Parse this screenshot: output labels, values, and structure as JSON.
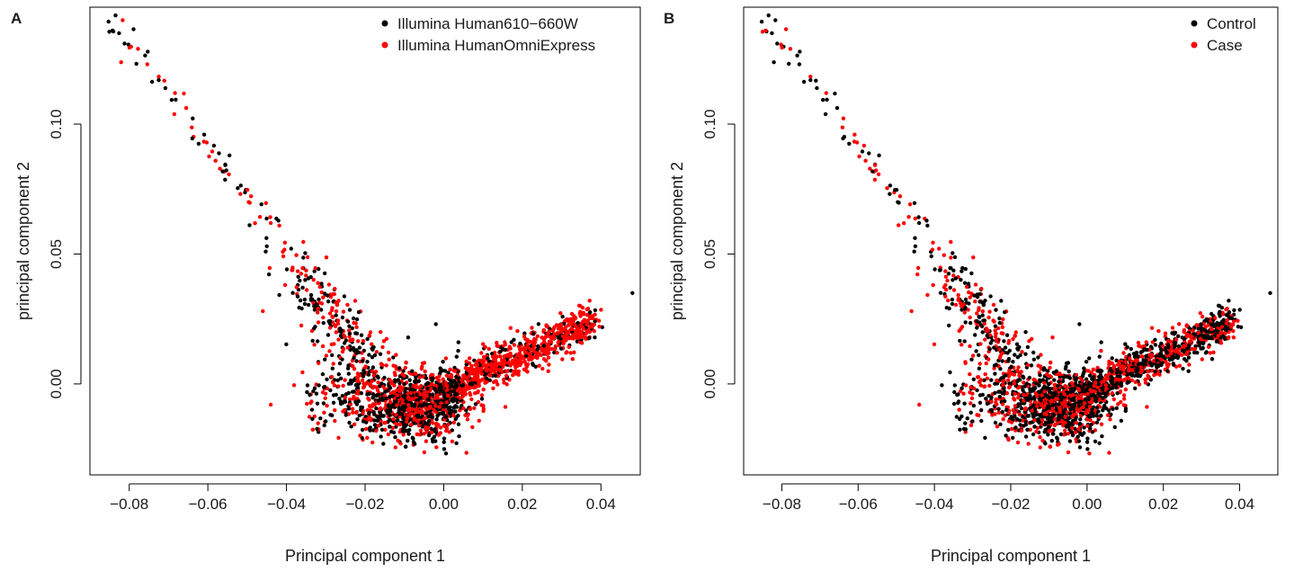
{
  "chart_data": [
    {
      "type": "scatter",
      "panel_label": "A",
      "title": "",
      "xlabel": "Principal component 1",
      "ylabel": "principal component 2",
      "xlim": [
        -0.09,
        0.05
      ],
      "ylim": [
        -0.035,
        0.145
      ],
      "xticks": [
        "-0.08",
        "-0.06",
        "-0.04",
        "-0.02",
        "0.00",
        "0.02",
        "0.04"
      ],
      "yticks": [
        "0.00",
        "0.05",
        "0.10"
      ],
      "grid": false,
      "legend_position": "top-right",
      "series": [
        {
          "name": "Illumina Human610−660W",
          "color": "#000000"
        },
        {
          "name": "Illumina HumanOmniExpress",
          "color": "#ff0000"
        }
      ]
    },
    {
      "type": "scatter",
      "panel_label": "B",
      "title": "",
      "xlabel": "Principal component 1",
      "ylabel": "principal component 2",
      "xlim": [
        -0.09,
        0.05
      ],
      "ylim": [
        -0.035,
        0.145
      ],
      "xticks": [
        "-0.08",
        "-0.06",
        "-0.04",
        "-0.02",
        "0.00",
        "0.02",
        "0.04"
      ],
      "yticks": [
        "0.00",
        "0.05",
        "0.10"
      ],
      "grid": false,
      "legend_position": "top-right",
      "series": [
        {
          "name": "Control",
          "color": "#000000"
        },
        {
          "name": "Case",
          "color": "#ff0000"
        }
      ]
    }
  ]
}
